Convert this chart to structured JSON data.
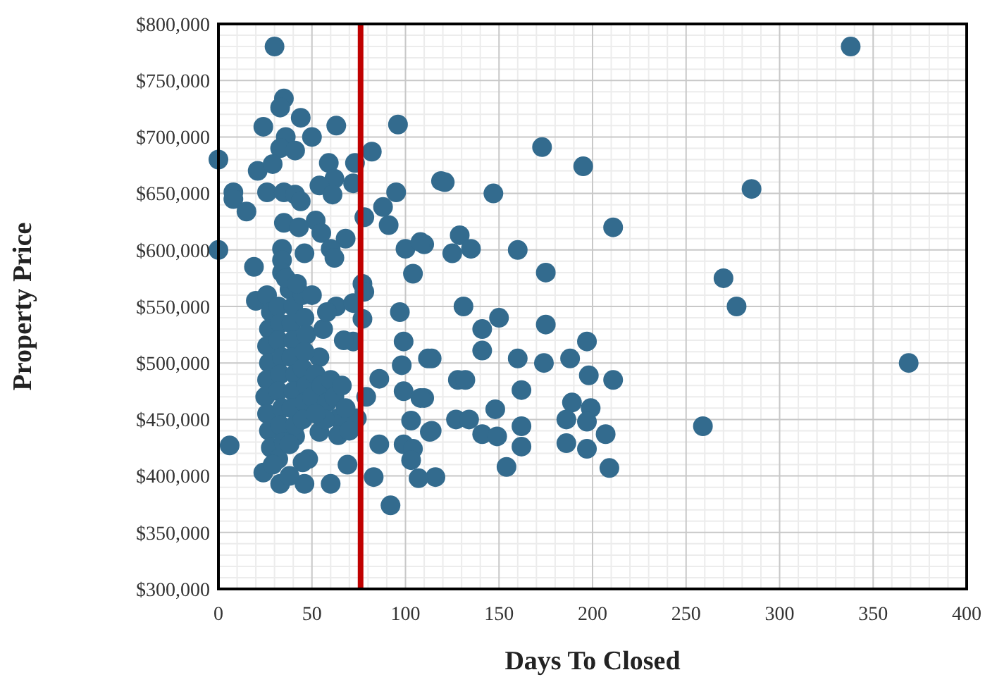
{
  "chart_data": {
    "type": "scatter",
    "xlabel": "Days To Closed",
    "ylabel": "Property Price",
    "xlim": [
      0,
      400
    ],
    "xticks": [
      0,
      50,
      100,
      150,
      200,
      250,
      300,
      350,
      400
    ],
    "ylim": [
      300000,
      800000
    ],
    "yticks": [
      {
        "value": 300000,
        "label": "$300,000"
      },
      {
        "value": 350000,
        "label": "$350,000"
      },
      {
        "value": 400000,
        "label": "$400,000"
      },
      {
        "value": 450000,
        "label": "$450,000"
      },
      {
        "value": 500000,
        "label": "$500,000"
      },
      {
        "value": 550000,
        "label": "$550,000"
      },
      {
        "value": 600000,
        "label": "$600,000"
      },
      {
        "value": 650000,
        "label": "$650,000"
      },
      {
        "value": 700000,
        "label": "$700,000"
      },
      {
        "value": 750000,
        "label": "$750,000"
      },
      {
        "value": 800000,
        "label": "$800,000"
      }
    ],
    "grid": true,
    "marker": "circle",
    "ref_lines": [
      {
        "axis": "x",
        "value": 76,
        "color": "#c00000"
      }
    ],
    "series": [
      {
        "color": "#336b8e",
        "x": [
          338,
          369,
          173,
          195,
          285,
          211,
          270,
          277,
          259,
          147,
          119,
          121,
          129,
          110,
          125,
          135,
          160,
          175,
          131,
          150,
          141,
          141,
          175,
          197,
          114,
          160,
          174,
          188,
          198,
          211,
          128,
          132,
          162,
          148,
          110,
          127,
          134,
          189,
          199,
          186,
          197,
          114,
          141,
          149,
          162,
          207,
          186,
          197,
          162,
          154,
          209,
          116,
          30,
          0,
          96,
          63,
          35,
          33,
          44,
          24,
          50,
          36,
          33,
          41,
          82,
          59,
          73,
          21,
          29,
          62,
          54,
          72,
          8,
          8,
          15,
          26,
          35,
          41,
          44,
          95,
          61,
          88,
          78,
          91,
          35,
          52,
          43,
          55,
          68,
          0,
          19,
          34,
          46,
          60,
          62,
          34,
          100,
          108,
          104,
          77,
          34,
          20,
          63,
          72,
          78,
          77,
          97,
          72,
          99,
          98,
          112,
          86,
          99,
          108,
          103,
          113,
          86,
          99,
          104,
          103,
          107,
          83,
          92,
          60,
          69,
          6,
          24,
          33,
          46,
          48,
          41,
          54,
          64,
          79,
          54,
          64,
          74,
          26,
          28,
          27,
          26,
          27,
          26,
          25,
          26,
          27,
          28,
          32,
          33,
          32,
          34,
          33,
          32,
          34,
          33,
          35,
          32,
          38,
          40,
          39,
          40,
          39,
          41,
          40,
          39,
          41,
          38,
          45,
          46,
          47,
          46,
          45,
          47,
          46,
          45,
          50,
          52,
          55,
          58,
          60,
          62,
          66,
          68,
          57,
          52,
          70,
          56,
          45,
          38,
          29,
          36,
          42,
          50,
          67,
          58
        ],
        "values": [
          780000,
          500000,
          691000,
          674000,
          654000,
          620000,
          575000,
          550000,
          444000,
          650000,
          661000,
          660000,
          613000,
          605000,
          597000,
          601000,
          600000,
          580000,
          550000,
          540000,
          530000,
          511000,
          534000,
          519000,
          504000,
          504000,
          500000,
          504000,
          489000,
          485000,
          485000,
          485000,
          476000,
          459000,
          469000,
          450000,
          450000,
          465000,
          460000,
          450000,
          448000,
          440000,
          437000,
          435000,
          444000,
          437000,
          429000,
          424000,
          426000,
          408000,
          407000,
          399000,
          780000,
          680000,
          711000,
          710000,
          734000,
          726000,
          717000,
          709000,
          700000,
          700000,
          690000,
          688000,
          687000,
          677000,
          677000,
          670000,
          676000,
          663000,
          657000,
          659000,
          651000,
          645000,
          634000,
          651000,
          651000,
          649000,
          643000,
          651000,
          649000,
          638000,
          629000,
          622000,
          624000,
          626000,
          620000,
          615000,
          610000,
          600000,
          585000,
          601000,
          597000,
          601000,
          593000,
          591000,
          601000,
          607000,
          579000,
          570000,
          580000,
          555000,
          550000,
          553000,
          563000,
          539000,
          545000,
          519000,
          519000,
          498000,
          504000,
          486000,
          475000,
          469000,
          449000,
          439000,
          428000,
          428000,
          424000,
          414000,
          398000,
          399000,
          374000,
          393000,
          410000,
          427000,
          403000,
          393000,
          393000,
          415000,
          435000,
          505000,
          451000,
          470000,
          439000,
          436000,
          451000,
          560000,
          545000,
          530000,
          515000,
          500000,
          485000,
          470000,
          455000,
          440000,
          425000,
          550000,
          535000,
          520000,
          505000,
          490000,
          475000,
          460000,
          445000,
          430000,
          415000,
          565000,
          550000,
          535000,
          520000,
          505000,
          490000,
          475000,
          460000,
          445000,
          428000,
          560000,
          540000,
          525000,
          510000,
          495000,
          480000,
          465000,
          450000,
          470000,
          490000,
          480000,
          465000,
          485000,
          470000,
          480000,
          460000,
          450000,
          455000,
          440000,
          530000,
          412000,
          400000,
          410000,
          575000,
          570000,
          560000,
          520000,
          545000
        ]
      }
    ]
  }
}
